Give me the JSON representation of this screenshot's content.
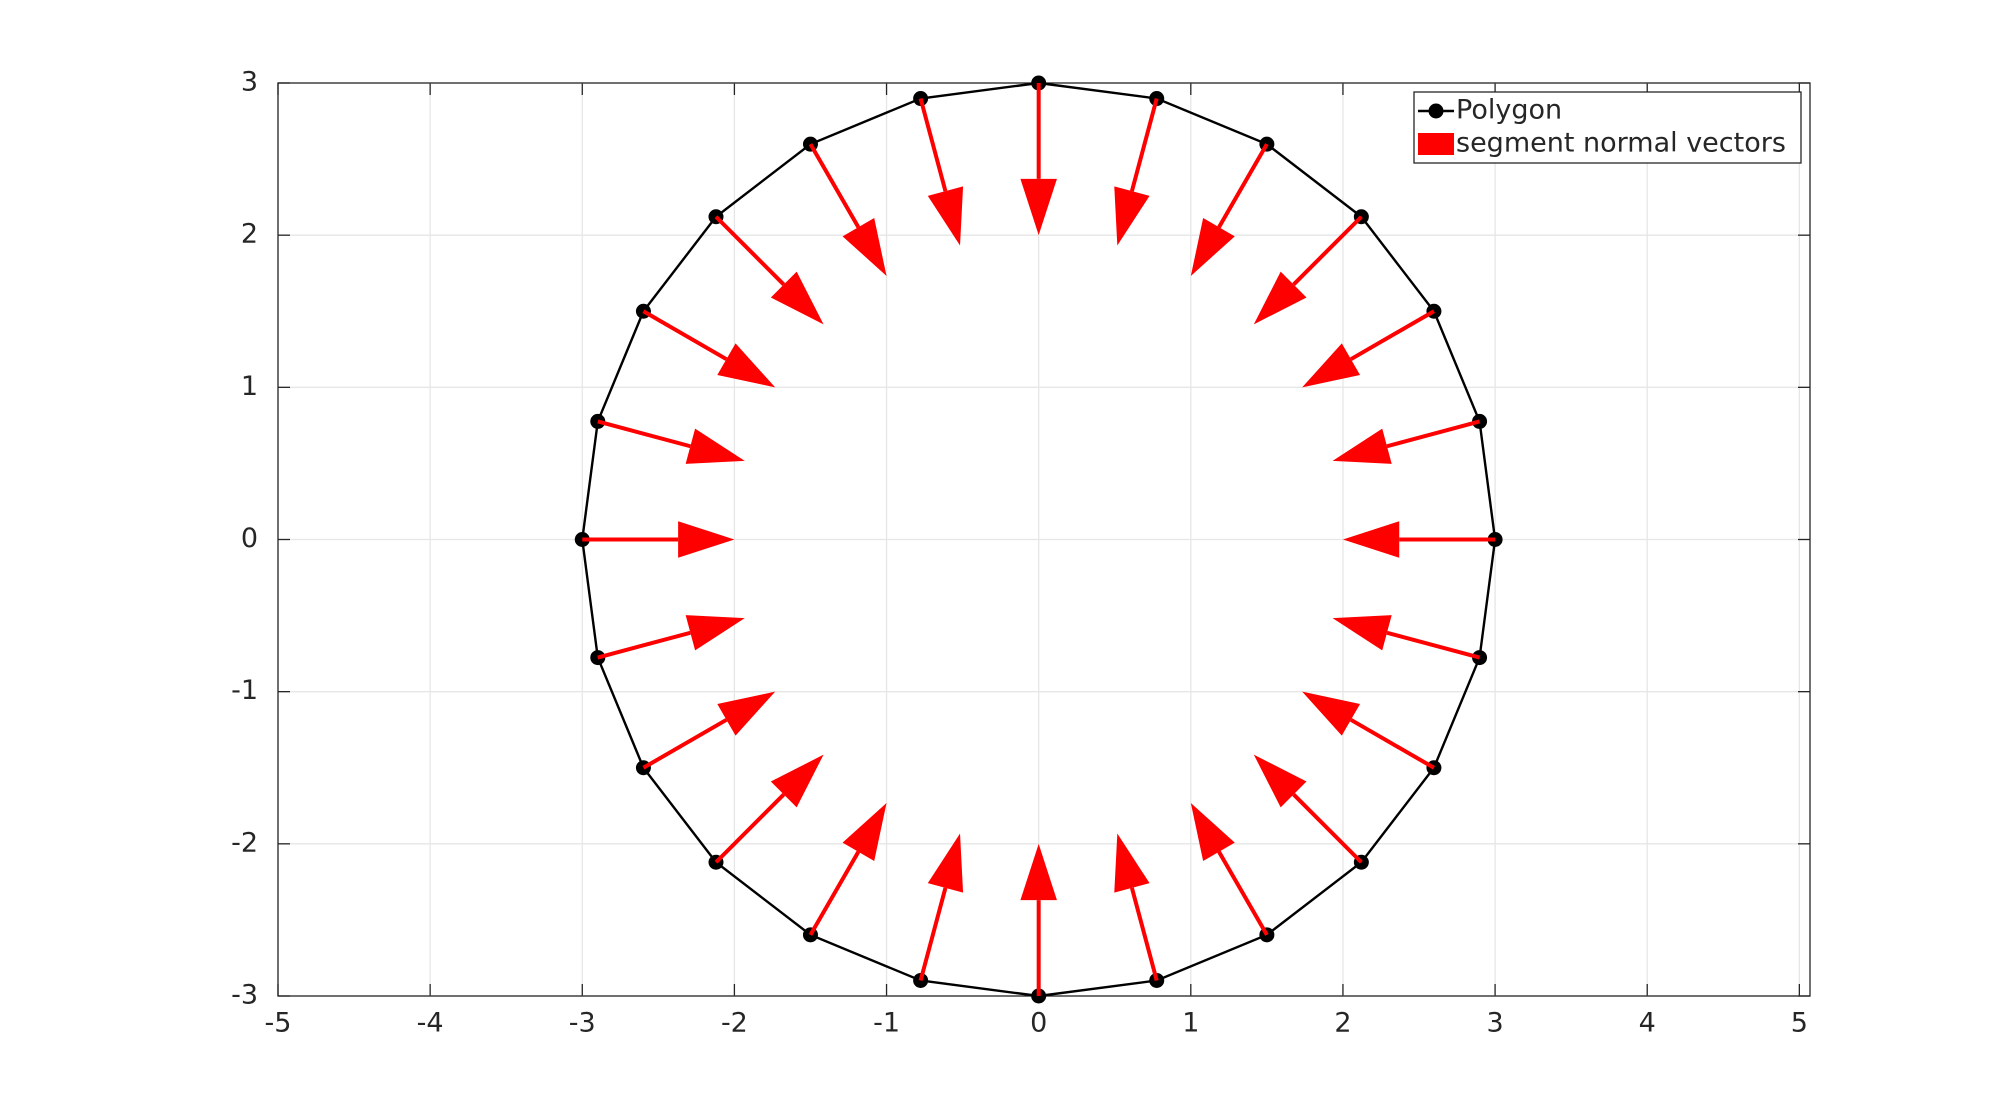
{
  "chart_data": {
    "type": "quiver",
    "series": [
      {
        "name": "Polygon",
        "type": "line",
        "color": "#000000",
        "x": [
          3,
          2.898,
          2.598,
          2.121,
          1.5,
          0.776,
          0,
          -0.776,
          -1.5,
          -2.121,
          -2.598,
          -2.898,
          -3,
          -2.898,
          -2.598,
          -2.121,
          -1.5,
          -0.776,
          0,
          0.776,
          1.5,
          2.121,
          2.598,
          2.898
        ],
        "y": [
          0,
          0.776,
          1.5,
          2.121,
          2.598,
          2.898,
          3,
          2.898,
          2.598,
          2.121,
          1.5,
          0.776,
          0,
          -0.776,
          -1.5,
          -2.121,
          -2.598,
          -2.898,
          -3,
          -2.898,
          -2.598,
          -2.121,
          -1.5,
          -0.776
        ]
      },
      {
        "name": "segment normal vectors",
        "type": "quiver",
        "color": "#ff0000",
        "x": [
          3,
          2.898,
          2.598,
          2.121,
          1.5,
          0.776,
          0,
          -0.776,
          -1.5,
          -2.121,
          -2.598,
          -2.898,
          -3,
          -2.898,
          -2.598,
          -2.121,
          -1.5,
          -0.776,
          0,
          0.776,
          1.5,
          2.121,
          2.598,
          2.898
        ],
        "y": [
          0,
          0.776,
          1.5,
          2.121,
          2.598,
          2.898,
          3,
          2.898,
          2.598,
          2.121,
          1.5,
          0.776,
          0,
          -0.776,
          -1.5,
          -2.121,
          -2.598,
          -2.898,
          -3,
          -2.898,
          -2.598,
          -2.121,
          -1.5,
          -0.776
        ],
        "u": [
          -1,
          -0.966,
          -0.866,
          -0.707,
          -0.5,
          -0.259,
          0,
          0.259,
          0.5,
          0.707,
          0.866,
          0.966,
          1,
          0.966,
          0.866,
          0.707,
          0.5,
          0.259,
          0,
          -0.259,
          -0.5,
          -0.707,
          -0.866,
          -0.966
        ],
        "v": [
          0,
          -0.259,
          -0.5,
          -0.707,
          -0.866,
          -0.966,
          -1,
          -0.966,
          -0.866,
          -0.707,
          -0.5,
          -0.259,
          0,
          0.259,
          0.5,
          0.707,
          0.866,
          0.966,
          1,
          0.966,
          0.866,
          0.707,
          0.5,
          0.259
        ]
      }
    ],
    "xlim": [
      -5,
      5.07
    ],
    "ylim": [
      -3,
      3
    ],
    "xticks": [
      -5,
      -4,
      -3,
      -2,
      -1,
      0,
      1,
      2,
      3,
      4,
      5
    ],
    "yticks": [
      -3,
      -2,
      -1,
      0,
      1,
      2,
      3
    ],
    "grid": true,
    "legend": "northeast"
  }
}
